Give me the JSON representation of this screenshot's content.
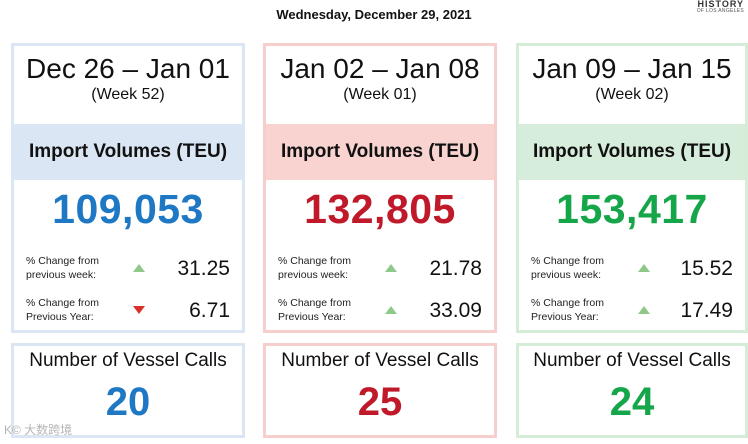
{
  "header": {
    "date": "Wednesday, December 29, 2021"
  },
  "logo": {
    "line1": "HISTORY",
    "line2": "OF LOS ANGELES"
  },
  "cards": [
    {
      "range": "Dec 26 – Jan 01",
      "week": "(Week 52)",
      "band": "Import Volumes (TEU)",
      "teu": "109,053",
      "stat1_label": [
        "% Change from",
        "previous week:"
      ],
      "stat1_value": "31.25",
      "stat1_direction": "up",
      "stat2_label": [
        "% Change from",
        "Previous Year:"
      ],
      "stat2_value": "6.71",
      "stat2_direction": "down",
      "vessel_title": "Number of Vessel Calls",
      "vessel_calls": "20",
      "accent": "#1f78c4"
    },
    {
      "range": "Jan 02 – Jan 08",
      "week": "(Week 01)",
      "band": "Import Volumes (TEU)",
      "teu": "132,805",
      "stat1_label": [
        "% Change from",
        "previous week:"
      ],
      "stat1_value": "21.78",
      "stat1_direction": "up",
      "stat2_label": [
        "% Change from",
        "Previous Year:"
      ],
      "stat2_value": "33.09",
      "stat2_direction": "up",
      "vessel_title": "Number of Vessel Calls",
      "vessel_calls": "25",
      "accent": "#c0192a"
    },
    {
      "range": "Jan 09 – Jan 15",
      "week": "(Week 02)",
      "band": "Import Volumes (TEU)",
      "teu": "153,417",
      "stat1_label": [
        "% Change from",
        "previous week:"
      ],
      "stat1_value": "15.52",
      "stat1_direction": "up",
      "stat2_label": [
        "% Change from",
        "Previous Year:"
      ],
      "stat2_value": "17.49",
      "stat2_direction": "up",
      "vessel_title": "Number of Vessel Calls",
      "vessel_calls": "24",
      "accent": "#16a64a"
    }
  ],
  "watermark": "K© 大数跨境"
}
